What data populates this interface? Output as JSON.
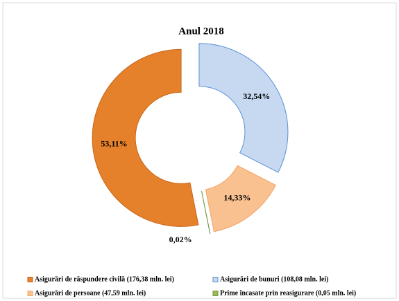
{
  "chart_data": {
    "type": "donut",
    "title": "Anul 2018",
    "categories": [
      "Asigurări de bunuri (108,08 mln. lei)",
      "Asigurări de persoane (47,59 mln. lei)",
      "Prime încasate prin reasigurare (0,05 mln. lei)",
      "Asigurări de răspundere civilă (176,38 mln. lei)"
    ],
    "values": [
      32.54,
      14.33,
      0.02,
      53.11
    ],
    "value_labels": [
      "32,54%",
      "14,33%",
      "0,02%",
      "53,11%"
    ],
    "colors": [
      "#c6d9f1",
      "#f9c090",
      "#9bbb59",
      "#e5812a"
    ],
    "legend": "bottom"
  }
}
